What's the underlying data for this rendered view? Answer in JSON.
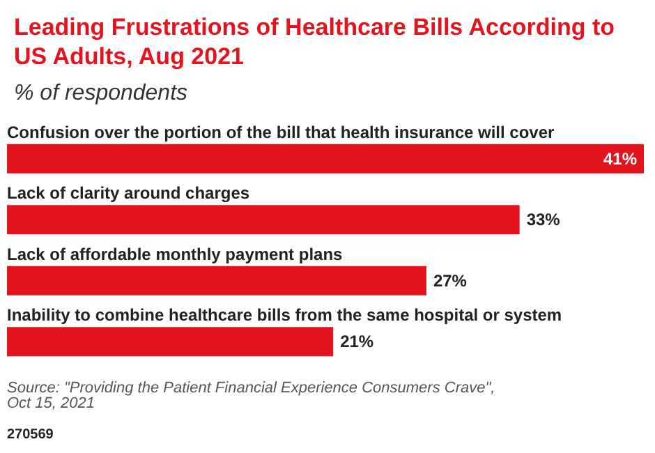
{
  "chart_data": {
    "type": "bar",
    "orientation": "horizontal",
    "title": "Leading Frustrations of Healthcare Bills According to US Adults, Aug 2021",
    "subtitle": "% of respondents",
    "categories": [
      "Confusion over the portion of the bill that health insurance will cover",
      "Lack of clarity around charges",
      "Lack of affordable monthly payment plans",
      "Inability to combine healthcare bills from the same hospital or system"
    ],
    "values": [
      41,
      33,
      27,
      21
    ],
    "value_labels": [
      "41%",
      "33%",
      "27%",
      "21%"
    ],
    "color": "#e3141d",
    "xlim": [
      0,
      41
    ],
    "tick_labels": false,
    "grid": false,
    "annotations": [
      "Source: \"Providing the Patient Financial Experience Consumers Crave\", Oct 15, 2021",
      "270569"
    ]
  }
}
